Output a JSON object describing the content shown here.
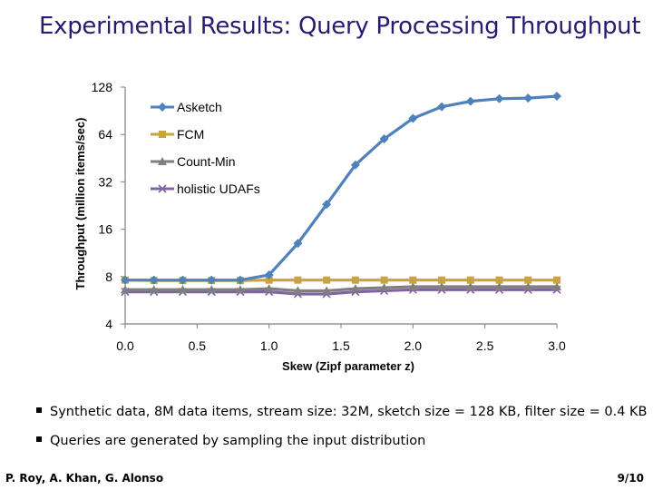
{
  "slide": {
    "title": "Experimental Results: Query Processing Throughput",
    "bullets": [
      "Synthetic data, 8M data items, stream size: 32M, sketch size = 128 KB, filter size = 0.4 KB",
      "Queries are generated by sampling the input distribution"
    ],
    "authors": "P. Roy, A. Khan, G. Alonso",
    "page": "9/10"
  },
  "chart_data": {
    "type": "line",
    "xlabel": "Skew (Zipf parameter z)",
    "ylabel": "Throughput (million items/sec)",
    "xlim": [
      0,
      3
    ],
    "ylim": [
      4,
      128
    ],
    "yscale": "log2",
    "xticks": [
      "0.0",
      "0.5",
      "1.0",
      "1.5",
      "2.0",
      "2.5",
      "3.0"
    ],
    "yticks": [
      "4",
      "8",
      "16",
      "32",
      "64",
      "128"
    ],
    "legend_position": "top-left",
    "grid": false,
    "x": [
      0.0,
      0.2,
      0.4,
      0.6,
      0.8,
      1.0,
      1.2,
      1.4,
      1.6,
      1.8,
      2.0,
      2.2,
      2.4,
      2.6,
      2.8,
      3.0
    ],
    "series": [
      {
        "name": "Asketch",
        "color": "#4f81bd",
        "marker": "diamond",
        "values": [
          7.6,
          7.6,
          7.6,
          7.6,
          7.6,
          8.2,
          13,
          23,
          41,
          60,
          81,
          96,
          104,
          108,
          109,
          112
        ]
      },
      {
        "name": "FCM",
        "color": "#c8a43a",
        "marker": "square",
        "values": [
          7.6,
          7.55,
          7.55,
          7.55,
          7.55,
          7.6,
          7.6,
          7.6,
          7.6,
          7.6,
          7.6,
          7.6,
          7.6,
          7.6,
          7.6,
          7.6
        ]
      },
      {
        "name": "Count-Min",
        "color": "#7f7f7f",
        "marker": "triangle",
        "values": [
          6.6,
          6.6,
          6.6,
          6.6,
          6.6,
          6.7,
          6.5,
          6.5,
          6.7,
          6.8,
          6.9,
          6.9,
          6.9,
          6.9,
          6.9,
          6.9
        ]
      },
      {
        "name": "holistic UDAFs",
        "color": "#8064a2",
        "marker": "x",
        "values": [
          6.4,
          6.4,
          6.4,
          6.4,
          6.4,
          6.4,
          6.2,
          6.2,
          6.4,
          6.5,
          6.6,
          6.6,
          6.6,
          6.6,
          6.6,
          6.6
        ]
      }
    ]
  }
}
